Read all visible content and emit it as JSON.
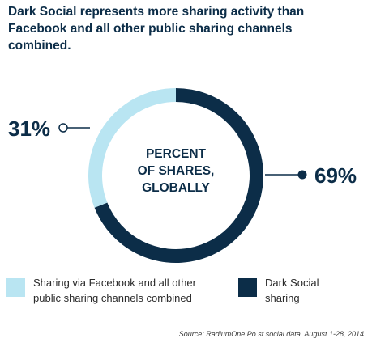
{
  "title_lines": [
    "Dark Social represents more sharing activity than",
    "Facebook and all other public sharing channels",
    "combined."
  ],
  "colors": {
    "light": "#b9e5f2",
    "dark": "#0c2d48",
    "text": "#0c2d48"
  },
  "chart_data": {
    "type": "pie",
    "center_label": [
      "PERCENT",
      "OF SHARES,",
      "GLOBALLY"
    ],
    "slices": [
      {
        "name": "Sharing via Facebook and all other public sharing channels combined",
        "value": 31,
        "label": "31%",
        "color": "#b9e5f2"
      },
      {
        "name": "Dark Social sharing",
        "value": 69,
        "label": "69%",
        "color": "#0c2d48"
      }
    ]
  },
  "legend": [
    {
      "lines": [
        "Sharing via Facebook and all other",
        "public sharing channels combined"
      ],
      "color": "#b9e5f2"
    },
    {
      "lines": [
        "Dark Social",
        "sharing"
      ],
      "color": "#0c2d48"
    }
  ],
  "source": "Source: RadiumOne Po.st social data, August 1-28, 2014"
}
